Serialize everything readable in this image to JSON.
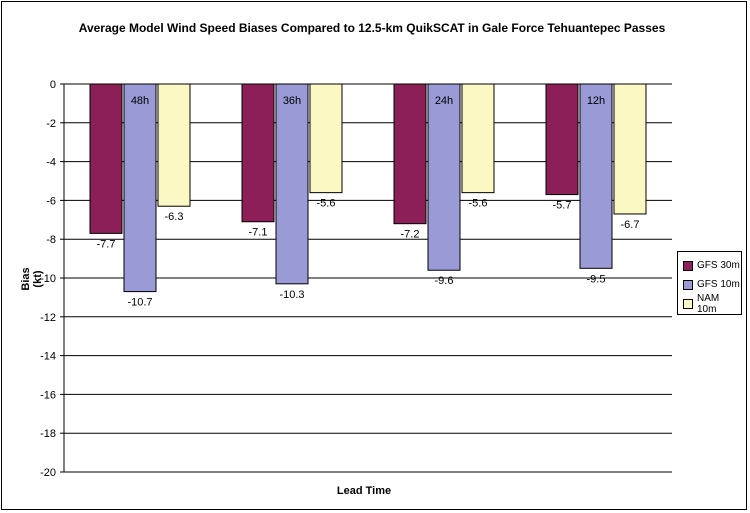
{
  "chart_data": {
    "type": "bar",
    "title": "Average Model Wind Speed Biases Compared to 12.5-km QuikSCAT in Gale Force Tehuantepec Passes",
    "xlabel": "Lead Time",
    "ylabel": "Bias (kt)",
    "ylim": [
      -20,
      0
    ],
    "ytick_step": 2,
    "yticks": [
      "0",
      "-2",
      "-4",
      "-6",
      "-8",
      "-10",
      "-12",
      "-14",
      "-16",
      "-18",
      "-20"
    ],
    "grid": true,
    "legend_position": "right",
    "categories": [
      "48h",
      "36h",
      "24h",
      "12h"
    ],
    "series": [
      {
        "name": "GFS 30m",
        "color": "#8c1f57",
        "values": [
          -7.7,
          -7.1,
          -7.2,
          -5.7
        ],
        "labels": [
          "-7.7",
          "-7.1",
          "-7.2",
          "-5.7"
        ]
      },
      {
        "name": "GFS 10m",
        "color": "#9a9ad6",
        "values": [
          -10.7,
          -10.3,
          -9.6,
          -9.5
        ],
        "labels": [
          "-10.7",
          "-10.3",
          "-9.6",
          "-9.5"
        ]
      },
      {
        "name": "NAM 10m",
        "color": "#fbf8c4",
        "values": [
          -6.3,
          -5.6,
          -5.6,
          -6.7
        ],
        "labels": [
          "-6.3",
          "-5.6",
          "-5.6",
          "-6.7"
        ]
      }
    ]
  }
}
